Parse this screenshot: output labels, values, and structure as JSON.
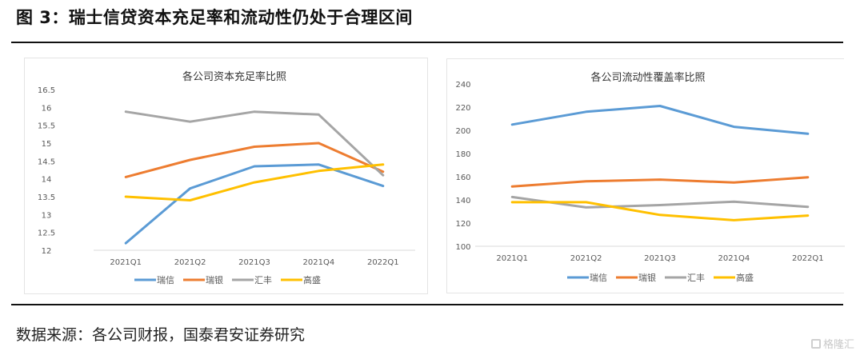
{
  "figure_title": "图 3：瑞士信贷资本充足率和流动性仍处于合理区间",
  "source_note": "数据来源：各公司财报，国泰君安证券研究",
  "watermark": "格隆汇",
  "series_colors": {
    "瑞信": "#5B9BD5",
    "瑞银": "#ED7D31",
    "汇丰": "#A5A5A5",
    "高盛": "#FFC000"
  },
  "chart_data": [
    {
      "type": "line",
      "title": "各公司资本充足率比照",
      "xlabel": "",
      "ylabel": "",
      "categories": [
        "2021Q1",
        "2021Q2",
        "2021Q3",
        "2021Q4",
        "2022Q1"
      ],
      "ylim": [
        12,
        16.5
      ],
      "yticks": [
        "12",
        "12.5",
        "13",
        "13.5",
        "14",
        "14.5",
        "15",
        "15.5",
        "16",
        "16.5"
      ],
      "grid": false,
      "legend_position": "bottom",
      "series": [
        {
          "name": "瑞信",
          "values": [
            12.2,
            13.73,
            14.35,
            14.4,
            13.8
          ]
        },
        {
          "name": "瑞银",
          "values": [
            14.05,
            14.53,
            14.9,
            15.0,
            14.2
          ]
        },
        {
          "name": "汇丰",
          "values": [
            15.88,
            15.6,
            15.88,
            15.8,
            14.1
          ]
        },
        {
          "name": "高盛",
          "values": [
            13.5,
            13.4,
            13.9,
            14.22,
            14.4
          ]
        }
      ]
    },
    {
      "type": "line",
      "title": "各公司流动性覆盖率比照",
      "xlabel": "",
      "ylabel": "",
      "categories": [
        "2021Q1",
        "2021Q2",
        "2021Q3",
        "2021Q4",
        "2022Q1"
      ],
      "ylim": [
        100,
        240
      ],
      "yticks": [
        "100",
        "120",
        "140",
        "160",
        "180",
        "200",
        "220",
        "240"
      ],
      "grid": false,
      "legend_position": "bottom",
      "series": [
        {
          "name": "瑞信",
          "values": [
            205,
            216,
            221,
            203,
            197
          ]
        },
        {
          "name": "瑞银",
          "values": [
            151.5,
            156,
            157.5,
            155,
            159.5
          ]
        },
        {
          "name": "汇丰",
          "values": [
            142.5,
            133.5,
            135.5,
            138.5,
            134
          ]
        },
        {
          "name": "高盛",
          "values": [
            138,
            138,
            127,
            122.5,
            126.5
          ]
        }
      ]
    }
  ]
}
